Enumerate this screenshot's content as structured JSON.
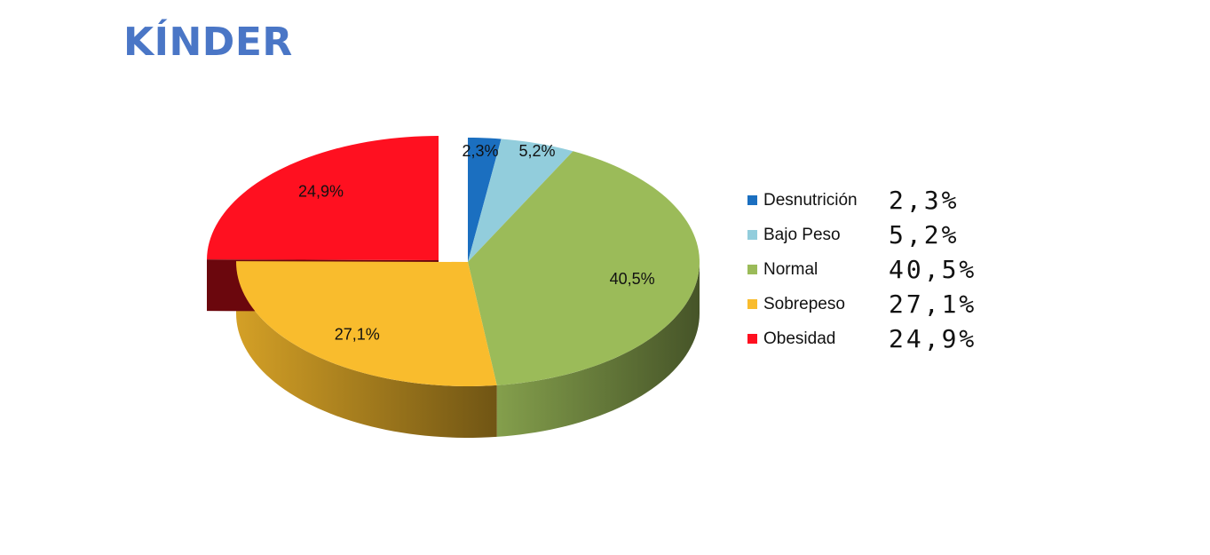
{
  "page": {
    "title": "KÍNDER"
  },
  "chart_data": {
    "type": "pie",
    "title": "KÍNDER",
    "three_d": true,
    "exploded_slice": "Obesidad",
    "categories": [
      "Desnutrición",
      "Bajo Peso",
      "Normal",
      "Sobrepeso",
      "Obesidad"
    ],
    "values": [
      2.3,
      5.2,
      40.5,
      27.1,
      24.9
    ],
    "data_labels": [
      "2,3%",
      "5,2%",
      "40,5%",
      "27,1%",
      "24,9%"
    ],
    "colors": [
      "#1b6fc0",
      "#92cddc",
      "#9bbb59",
      "#f9bc2d",
      "#ff1020"
    ],
    "legend_position": "right"
  },
  "legend": {
    "items": [
      {
        "label": "Desnutrición",
        "value": "2,3%",
        "color": "#1b6fc0"
      },
      {
        "label": "Bajo Peso",
        "value": "5,2%",
        "color": "#92cddc"
      },
      {
        "label": "Normal",
        "value": "40,5%",
        "color": "#9bbb59"
      },
      {
        "label": "Sobrepeso",
        "value": "27,1%",
        "color": "#f9bc2d"
      },
      {
        "label": "Obesidad",
        "value": "24,9%",
        "color": "#ff1020"
      }
    ]
  }
}
